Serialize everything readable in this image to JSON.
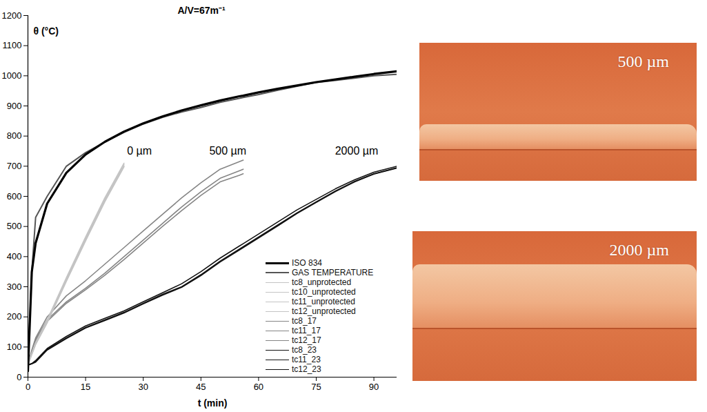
{
  "chart_data": {
    "type": "line",
    "title": "A/V=67m⁻¹",
    "x_label": "t (min)",
    "y_label": "θ (°C)",
    "xlim": [
      0,
      96
    ],
    "ylim": [
      0,
      1200
    ],
    "xticks": [
      0,
      15,
      30,
      45,
      60,
      75,
      90
    ],
    "yticks": [
      0,
      100,
      200,
      300,
      400,
      500,
      600,
      700,
      800,
      900,
      1000,
      1100,
      1200
    ],
    "grid": false,
    "legend": "lower right",
    "x": [
      0,
      1,
      2,
      5,
      10,
      15,
      20,
      25,
      30,
      35,
      40,
      45,
      50,
      55,
      56,
      60,
      65,
      70,
      75,
      80,
      85,
      90,
      96
    ],
    "series": [
      {
        "name": "ISO 834",
        "color": "#000000",
        "values": [
          20,
          349,
          445,
          576,
          678,
          739,
          781,
          815,
          842,
          865,
          885,
          902,
          918,
          932,
          934,
          945,
          957,
          968,
          979,
          988,
          997,
          1006,
          1015
        ]
      },
      {
        "name": "GAS TEMPERATURE",
        "color": "#555555",
        "values": [
          40,
          350,
          530,
          600,
          700,
          745,
          780,
          812,
          840,
          862,
          880,
          895,
          912,
          925,
          928,
          938,
          952,
          965,
          978,
          985,
          992,
          1000,
          1005
        ]
      },
      {
        "name": "tc8_unprotected",
        "color": "#c4c4c4",
        "values": [
          40,
          80,
          115,
          190,
          330,
          465,
          595,
          710,
          null,
          null,
          null,
          null,
          null,
          null,
          null,
          null,
          null,
          null,
          null,
          null,
          null,
          null,
          null
        ]
      },
      {
        "name": "tc10_unprotected",
        "color": "#c4c4c4",
        "values": [
          40,
          78,
          112,
          185,
          325,
          460,
          590,
          705,
          null,
          null,
          null,
          null,
          null,
          null,
          null,
          null,
          null,
          null,
          null,
          null,
          null,
          null,
          null
        ]
      },
      {
        "name": "tc11_unprotected",
        "color": "#c4c4c4",
        "values": [
          40,
          76,
          110,
          182,
          320,
          455,
          585,
          700,
          null,
          null,
          null,
          null,
          null,
          null,
          null,
          null,
          null,
          null,
          null,
          null,
          null,
          null,
          null
        ]
      },
      {
        "name": "tc12_unprotected",
        "color": "#c4c4c4",
        "values": [
          40,
          75,
          108,
          180,
          318,
          452,
          582,
          698,
          null,
          null,
          null,
          null,
          null,
          null,
          null,
          null,
          null,
          null,
          null,
          null,
          null,
          null,
          null
        ]
      },
      {
        "name": "tc8_17",
        "color": "#858585",
        "values": [
          40,
          90,
          130,
          200,
          270,
          320,
          375,
          430,
          485,
          540,
          595,
          645,
          690,
          715,
          720,
          null,
          null,
          null,
          null,
          null,
          null,
          null,
          null
        ]
      },
      {
        "name": "tc11_17",
        "color": "#858585",
        "values": [
          40,
          85,
          125,
          190,
          250,
          295,
          345,
          400,
          455,
          510,
          565,
          615,
          660,
          685,
          690,
          null,
          null,
          null,
          null,
          null,
          null,
          null,
          null
        ]
      },
      {
        "name": "tc12_17",
        "color": "#858585",
        "values": [
          40,
          83,
          120,
          185,
          245,
          290,
          338,
          390,
          445,
          500,
          553,
          603,
          648,
          670,
          675,
          null,
          null,
          null,
          null,
          null,
          null,
          null,
          null
        ]
      },
      {
        "name": "tc8_23",
        "color": "#111111",
        "values": [
          40,
          45,
          55,
          95,
          135,
          170,
          195,
          220,
          250,
          280,
          310,
          350,
          395,
          435,
          443,
          475,
          515,
          555,
          590,
          625,
          655,
          680,
          700
        ]
      },
      {
        "name": "tc11_23",
        "color": "#111111",
        "values": [
          40,
          45,
          52,
          92,
          130,
          165,
          190,
          215,
          245,
          275,
          300,
          340,
          385,
          425,
          433,
          465,
          505,
          545,
          582,
          618,
          650,
          675,
          695
        ]
      },
      {
        "name": "tc12_23",
        "color": "#111111",
        "values": [
          40,
          44,
          50,
          90,
          128,
          163,
          188,
          213,
          243,
          272,
          298,
          337,
          382,
          422,
          430,
          462,
          502,
          543,
          580,
          616,
          648,
          674,
          694
        ]
      }
    ],
    "annotations": [
      {
        "text": "0 µm",
        "x": 29,
        "y": 750
      },
      {
        "text": "500 µm",
        "x": 52,
        "y": 750
      },
      {
        "text": "2000 µm",
        "x": 85.5,
        "y": 750
      }
    ]
  },
  "images": [
    {
      "label": "500 µm"
    },
    {
      "label": "2000 µm"
    }
  ]
}
